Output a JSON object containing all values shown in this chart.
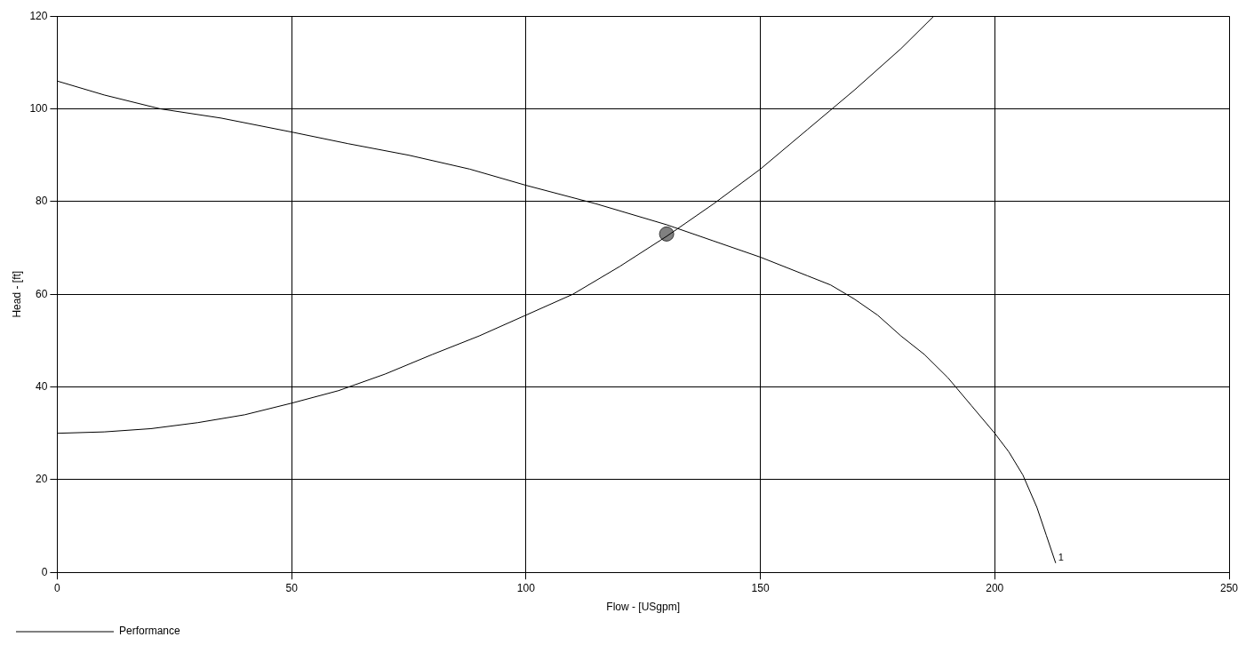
{
  "chart_data": {
    "type": "line",
    "xlabel": "Flow - [USgpm]",
    "ylabel": "Head - [ft]",
    "xlim": [
      0,
      250
    ],
    "xticks": [
      0,
      50,
      100,
      150,
      200,
      250
    ],
    "ylim": [
      0,
      120
    ],
    "yticks": [
      0,
      20,
      40,
      60,
      80,
      100,
      120
    ],
    "grid": true,
    "legend": "bottom left",
    "series": [
      {
        "name": "Performance",
        "color": "#000000",
        "x": [
          0,
          10,
          22,
          35,
          50,
          62,
          75,
          88,
          100,
          115,
          130,
          140,
          150,
          160,
          165,
          170,
          175,
          180,
          185,
          190,
          195,
          200,
          203,
          206,
          209,
          211,
          213
        ],
        "values": [
          106,
          103,
          100,
          98,
          95,
          92.5,
          90,
          87,
          83.5,
          79.5,
          75,
          71.5,
          68,
          64,
          62,
          59,
          55.5,
          51,
          47,
          42,
          36,
          30,
          26,
          21,
          14,
          8,
          2
        ]
      },
      {
        "color": "#000000",
        "x": [
          0,
          10,
          20,
          30,
          40,
          50,
          60,
          70,
          80,
          90,
          100,
          110,
          120,
          130,
          140,
          150,
          160,
          170,
          180,
          187
        ],
        "values": [
          30,
          30.3,
          31,
          32.3,
          34,
          36.5,
          39.2,
          42.8,
          47,
          51,
          55.5,
          60,
          66,
          72.5,
          79.5,
          87,
          95.5,
          104,
          113,
          120
        ]
      },
      {
        "type": "scatter",
        "color": "#808080",
        "marker": "circle",
        "x": [
          130
        ],
        "values": [
          73
        ]
      }
    ],
    "annotations": [
      {
        "text": "1",
        "x": 213,
        "y": 2
      }
    ]
  }
}
